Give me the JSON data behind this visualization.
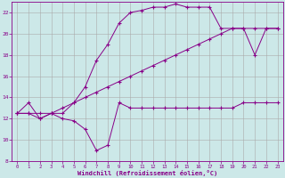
{
  "background_color": "#cce8e8",
  "grid_color": "#aaaaaa",
  "line_color": "#880088",
  "xlabel": "Windchill (Refroidissement éolien,°C)",
  "xlim": [
    -0.5,
    23.5
  ],
  "ylim": [
    8,
    23
  ],
  "yticks": [
    8,
    10,
    12,
    14,
    16,
    18,
    20,
    22
  ],
  "xticks": [
    0,
    1,
    2,
    3,
    4,
    5,
    6,
    7,
    8,
    9,
    10,
    11,
    12,
    13,
    14,
    15,
    16,
    17,
    18,
    19,
    20,
    21,
    22,
    23
  ],
  "series1_x": [
    0,
    1,
    2,
    3,
    4,
    5,
    6,
    7,
    8,
    9,
    10,
    11,
    12,
    13,
    14,
    15,
    16,
    17,
    18,
    19,
    20,
    21,
    22,
    23
  ],
  "series1_y": [
    12.5,
    13.5,
    12.0,
    12.5,
    12.0,
    11.8,
    11.0,
    9.0,
    9.5,
    13.5,
    13.0,
    13.0,
    13.0,
    13.0,
    13.0,
    13.0,
    13.0,
    13.0,
    13.0,
    13.0,
    13.5,
    13.5,
    13.5,
    13.5
  ],
  "series2_x": [
    0,
    1,
    2,
    3,
    4,
    5,
    6,
    7,
    8,
    9,
    10,
    11,
    12,
    13,
    14,
    15,
    16,
    17,
    18,
    19,
    20,
    21,
    22,
    23
  ],
  "series2_y": [
    12.5,
    12.5,
    12.5,
    12.5,
    13.0,
    13.5,
    14.0,
    14.5,
    15.0,
    15.5,
    16.0,
    16.5,
    17.0,
    17.5,
    18.0,
    18.5,
    19.0,
    19.5,
    20.0,
    20.5,
    20.5,
    20.5,
    20.5,
    20.5
  ],
  "series3_x": [
    0,
    1,
    2,
    3,
    4,
    5,
    6,
    7,
    8,
    9,
    10,
    11,
    12,
    13,
    14,
    15,
    16,
    17,
    18,
    19,
    20,
    21,
    22,
    23
  ],
  "series3_y": [
    12.5,
    12.5,
    12.0,
    12.5,
    12.5,
    13.5,
    15.0,
    17.5,
    19.0,
    21.0,
    22.0,
    22.2,
    22.5,
    22.5,
    22.8,
    22.5,
    22.5,
    22.5,
    20.5,
    20.5,
    20.5,
    18.0,
    20.5,
    20.5
  ]
}
